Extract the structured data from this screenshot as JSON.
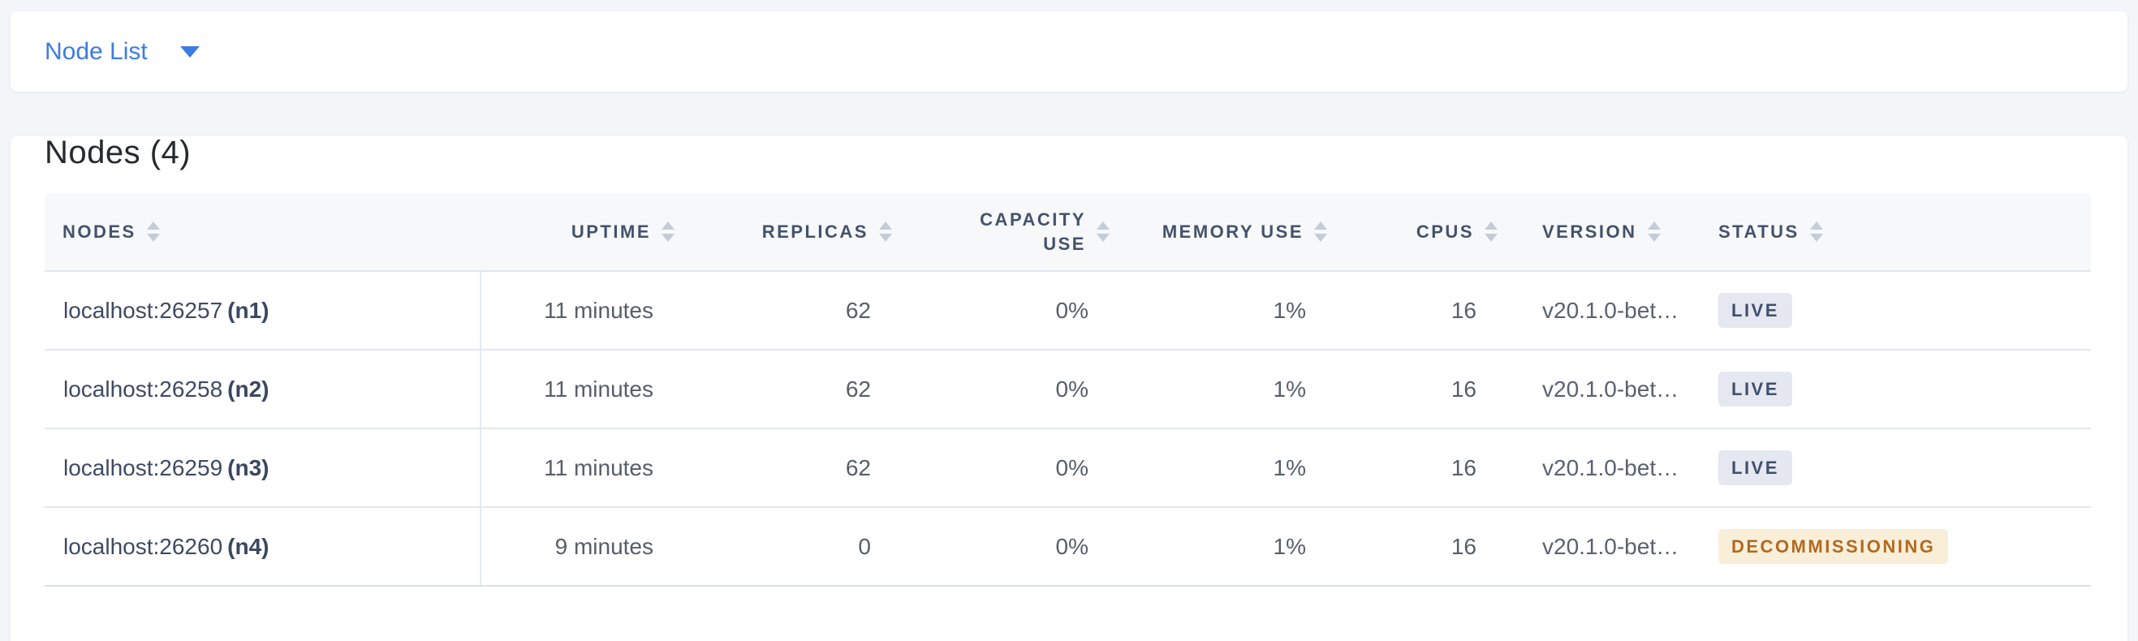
{
  "topbar": {
    "dropdown_label": "Node List",
    "dropdown_icon": "caret-down-icon"
  },
  "card": {
    "title": "Nodes (4)",
    "table": {
      "columns": [
        {
          "label": "Nodes",
          "align": "left",
          "sort_icon": "sort-arrows-icon"
        },
        {
          "label": "Uptime",
          "align": "right",
          "sort_icon": "sort-arrows-icon"
        },
        {
          "label": "Replicas",
          "align": "right",
          "sort_icon": "sort-arrows-icon"
        },
        {
          "label": "Capacity Use",
          "align": "right",
          "sort_icon": "sort-arrows-icon"
        },
        {
          "label": "Memory Use",
          "align": "right",
          "sort_icon": "sort-arrows-icon"
        },
        {
          "label": "CPUs",
          "align": "right",
          "sort_icon": "sort-arrows-icon"
        },
        {
          "label": "Version",
          "align": "left",
          "sort_icon": "sort-arrows-icon"
        },
        {
          "label": "Status",
          "align": "left",
          "sort_icon": "sort-arrows-icon"
        }
      ],
      "rows": [
        {
          "address": "localhost:26257",
          "node_id": "(n1)",
          "uptime": "11 minutes",
          "replicas": "62",
          "capacity_use": "0%",
          "memory_use": "1%",
          "cpus": "16",
          "version": "v20.1.0-bet…",
          "status": "Live",
          "status_type": "live"
        },
        {
          "address": "localhost:26258",
          "node_id": "(n2)",
          "uptime": "11 minutes",
          "replicas": "62",
          "capacity_use": "0%",
          "memory_use": "1%",
          "cpus": "16",
          "version": "v20.1.0-bet…",
          "status": "Live",
          "status_type": "live"
        },
        {
          "address": "localhost:26259",
          "node_id": "(n3)",
          "uptime": "11 minutes",
          "replicas": "62",
          "capacity_use": "0%",
          "memory_use": "1%",
          "cpus": "16",
          "version": "v20.1.0-bet…",
          "status": "Live",
          "status_type": "live"
        },
        {
          "address": "localhost:26260",
          "node_id": "(n4)",
          "uptime": "9 minutes",
          "replicas": "0",
          "capacity_use": "0%",
          "memory_use": "1%",
          "cpus": "16",
          "version": "v20.1.0-bet…",
          "status": "Decommissioning",
          "status_type": "decommissioning"
        }
      ]
    }
  },
  "colors": {
    "accent_blue": "#3D7BE4",
    "page_background": "#F3F5F9",
    "header_text": "#43526B",
    "live_badge_bg": "#E5E8F0",
    "live_badge_text": "#3E4F6E",
    "decommissioning_badge_bg": "#F9EFD9",
    "decommissioning_badge_text": "#B2691F"
  }
}
